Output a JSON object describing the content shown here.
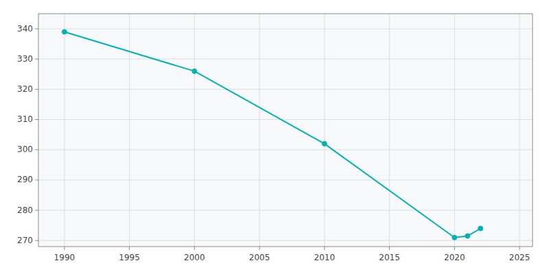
{
  "chart_data": {
    "type": "line",
    "x": [
      1990,
      2000,
      2010,
      2020,
      2021,
      2022
    ],
    "values": [
      339,
      326,
      302,
      271,
      271.5,
      274
    ],
    "color": "#00b3b3",
    "marker": "circle",
    "xlim": [
      1988,
      2026
    ],
    "ylim": [
      268,
      345
    ],
    "xticks": [
      1990,
      1995,
      2000,
      2005,
      2010,
      2015,
      2020,
      2025
    ],
    "yticks": [
      270,
      280,
      290,
      300,
      310,
      320,
      330,
      340
    ],
    "grid": true
  }
}
